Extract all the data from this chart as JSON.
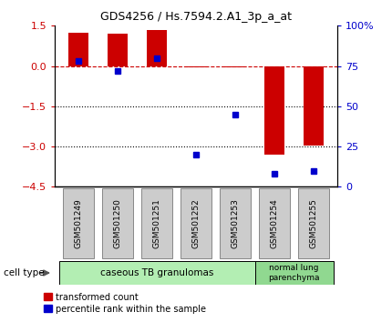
{
  "title": "GDS4256 / Hs.7594.2.A1_3p_a_at",
  "categories": [
    "GSM501249",
    "GSM501250",
    "GSM501251",
    "GSM501252",
    "GSM501253",
    "GSM501254",
    "GSM501255"
  ],
  "red_values": [
    1.25,
    1.2,
    1.35,
    -0.05,
    -0.05,
    -3.3,
    -2.95
  ],
  "blue_values_pct": [
    78,
    72,
    80,
    20,
    45,
    8,
    10
  ],
  "ylim_left": [
    -4.5,
    1.5
  ],
  "ylim_right": [
    0,
    100
  ],
  "yticks_left": [
    1.5,
    0,
    -1.5,
    -3,
    -4.5
  ],
  "yticks_right": [
    0,
    25,
    50,
    75,
    100
  ],
  "cell_type_groups": [
    {
      "label": "caseous TB granulomas",
      "start": 0,
      "end": 5,
      "color": "#b3eeb3"
    },
    {
      "label": "normal lung\nparenchyma",
      "start": 5,
      "end": 7,
      "color": "#90d890"
    }
  ],
  "red_color": "#cc0000",
  "blue_color": "#0000cc",
  "legend_red": "transformed count",
  "legend_blue": "percentile rank within the sample",
  "cell_type_label": "cell type",
  "bar_width": 0.5,
  "xtick_box_color": "#cccccc",
  "xtick_box_edge": "#888888"
}
